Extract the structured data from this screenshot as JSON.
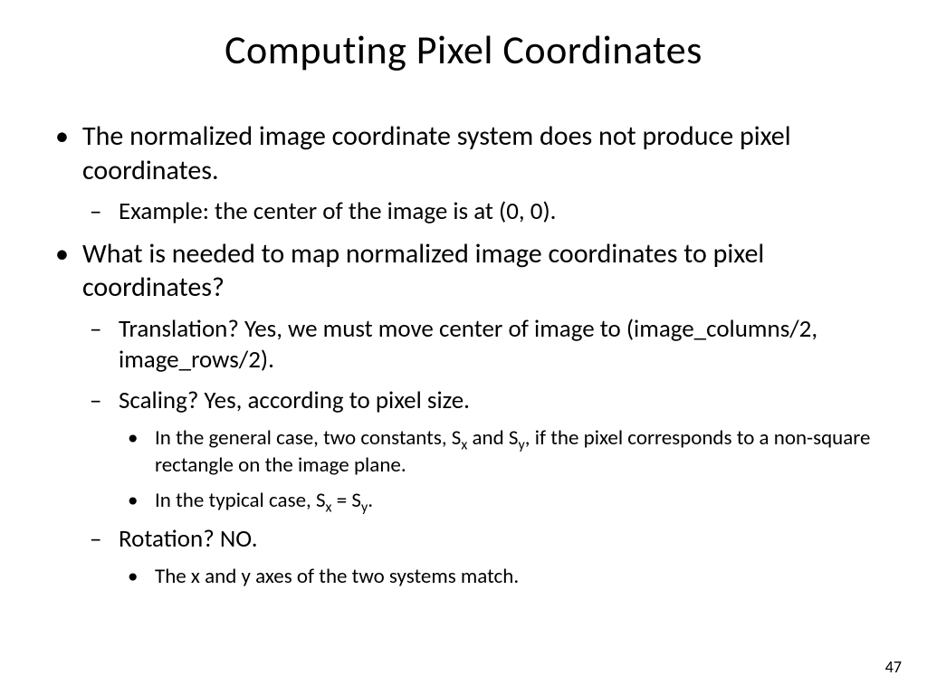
{
  "slide": {
    "title": "Computing Pixel Coordinates",
    "page_number": "47",
    "background_color": "#ffffff",
    "text_color": "#000000",
    "title_fontsize": 44,
    "l1_fontsize": 30,
    "l2_fontsize": 27,
    "l3_fontsize": 23,
    "bullets": {
      "b1": "The normalized image coordinate system does not produce pixel coordinates.",
      "b1a": "Example: the center of the image is at (0, 0).",
      "b2": "What is needed to map normalized image coordinates to pixel coordinates?",
      "b2a": "Translation? Yes, we must move center of image to (image_columns/2, image_rows/2).",
      "b2b": "Scaling? Yes, according to pixel size.",
      "b2b1_pre": "In the general case, two constants, S",
      "b2b1_sub1": "x",
      "b2b1_mid": " and S",
      "b2b1_sub2": "y",
      "b2b1_post": ", if the pixel corresponds to a non-square rectangle on the image plane.",
      "b2b2_pre": "In the typical case, S",
      "b2b2_sub1": "x",
      "b2b2_mid": " = S",
      "b2b2_sub2": "y",
      "b2b2_post": ".",
      "b2c": "Rotation? NO.",
      "b2c1": "The x and y axes of the two systems match."
    }
  }
}
